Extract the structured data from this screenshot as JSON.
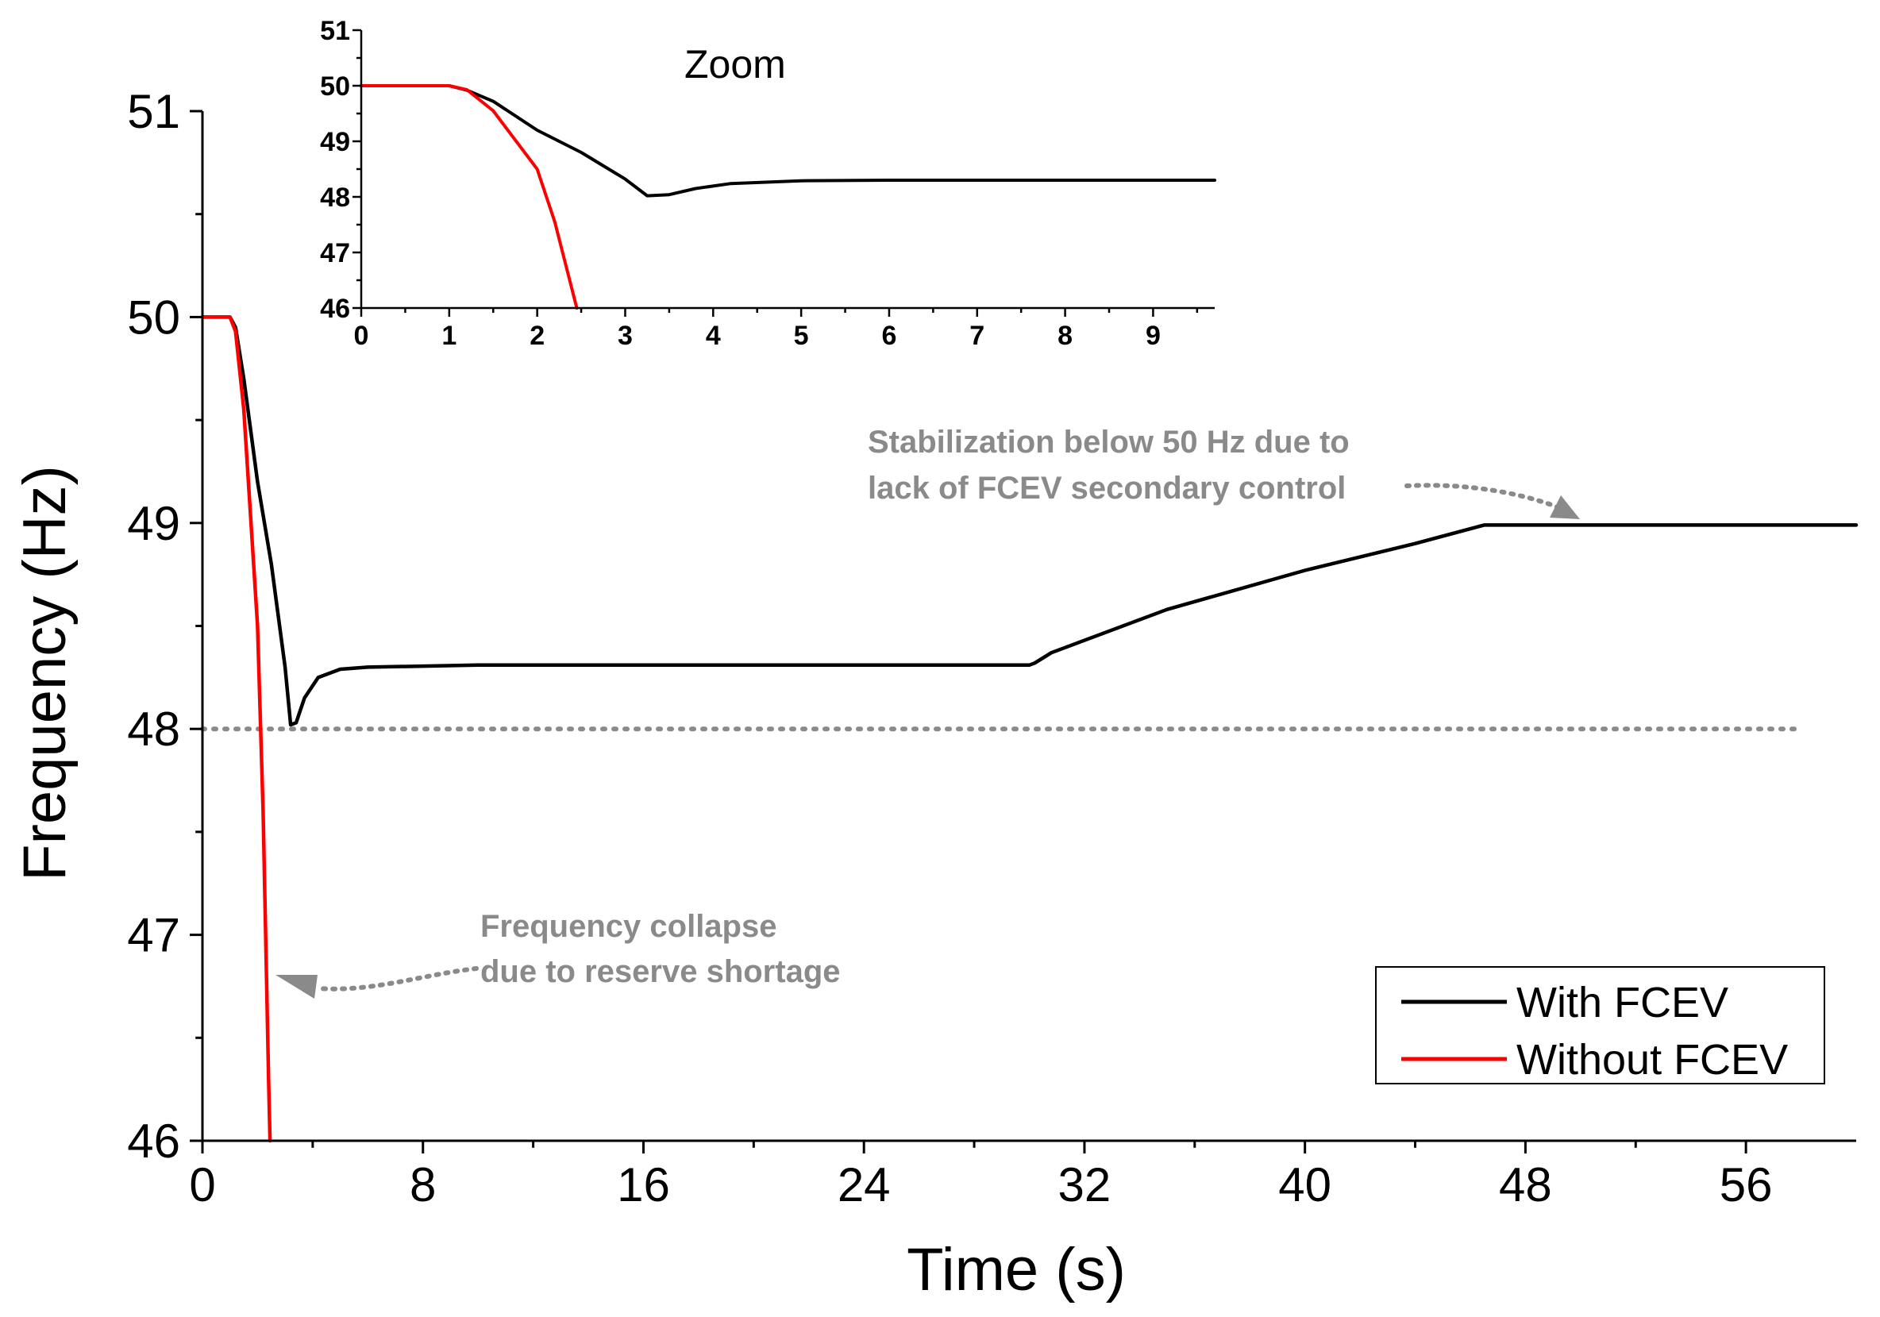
{
  "chart_data": [
    {
      "type": "line",
      "xlabel": "Time (s)",
      "ylabel": "Frequency (Hz)",
      "xlim": [
        0,
        60
      ],
      "ylim": [
        46,
        51
      ],
      "xticks": [
        "0",
        "8",
        "16",
        "24",
        "32",
        "40",
        "48",
        "56"
      ],
      "yticks": [
        "46",
        "47",
        "48",
        "49",
        "50",
        "51"
      ],
      "legend": {
        "position": "bottom-right",
        "entries": [
          "With FCEV",
          "Without FCEV"
        ]
      },
      "series": [
        {
          "name": "With FCEV",
          "color": "#000000",
          "points": [
            [
              0,
              50
            ],
            [
              1,
              50
            ],
            [
              1.2,
              49.95
            ],
            [
              1.5,
              49.7
            ],
            [
              2,
              49.2
            ],
            [
              2.5,
              48.8
            ],
            [
              3,
              48.3
            ],
            [
              3.2,
              48.02
            ],
            [
              3.4,
              48.03
            ],
            [
              3.7,
              48.15
            ],
            [
              4.2,
              48.25
            ],
            [
              5,
              48.29
            ],
            [
              6,
              48.3
            ],
            [
              10,
              48.31
            ],
            [
              20,
              48.31
            ],
            [
              30,
              48.31
            ],
            [
              30.2,
              48.32
            ],
            [
              30.8,
              48.37
            ],
            [
              35,
              48.58
            ],
            [
              40,
              48.77
            ],
            [
              44,
              48.9
            ],
            [
              46.5,
              48.99
            ],
            [
              50,
              48.99
            ],
            [
              60,
              48.99
            ]
          ]
        },
        {
          "name": "Without FCEV",
          "color": "#ff0000",
          "points": [
            [
              0,
              50
            ],
            [
              1,
              50
            ],
            [
              1.2,
              49.93
            ],
            [
              1.5,
              49.55
            ],
            [
              2,
              48.5
            ],
            [
              2.2,
              47.6
            ],
            [
              2.4,
              46.3
            ],
            [
              2.45,
              46
            ]
          ]
        }
      ],
      "reference_line": {
        "y": 48,
        "x_range": [
          0,
          58
        ],
        "style": "dotted",
        "color": "#8a8a8a"
      },
      "annotations": [
        {
          "lines": [
            "Stabilization below 50 Hz due to",
            "lack of FCEV secondary control"
          ]
        },
        {
          "lines": [
            "Frequency collapse",
            "due to reserve shortage"
          ]
        }
      ]
    },
    {
      "type": "line",
      "title": "Zoom",
      "xlim": [
        0,
        9.7
      ],
      "ylim": [
        46,
        51
      ],
      "xticks": [
        "0",
        "1",
        "2",
        "3",
        "4",
        "5",
        "6",
        "7",
        "8",
        "9"
      ],
      "yticks": [
        "46",
        "47",
        "48",
        "49",
        "50",
        "51"
      ],
      "series": [
        {
          "name": "With FCEV",
          "color": "#000000",
          "points": [
            [
              0,
              50
            ],
            [
              1,
              50
            ],
            [
              1.2,
              49.92
            ],
            [
              1.5,
              49.72
            ],
            [
              2,
              49.2
            ],
            [
              2.5,
              48.8
            ],
            [
              3,
              48.32
            ],
            [
              3.25,
              48.02
            ],
            [
              3.5,
              48.04
            ],
            [
              3.8,
              48.15
            ],
            [
              4.2,
              48.24
            ],
            [
              5,
              48.29
            ],
            [
              6,
              48.3
            ],
            [
              9.7,
              48.3
            ]
          ]
        },
        {
          "name": "Without FCEV",
          "color": "#ff0000",
          "points": [
            [
              0,
              50
            ],
            [
              1,
              50
            ],
            [
              1.2,
              49.93
            ],
            [
              1.5,
              49.55
            ],
            [
              2,
              48.5
            ],
            [
              2.2,
              47.55
            ],
            [
              2.45,
              46
            ]
          ]
        }
      ]
    }
  ]
}
